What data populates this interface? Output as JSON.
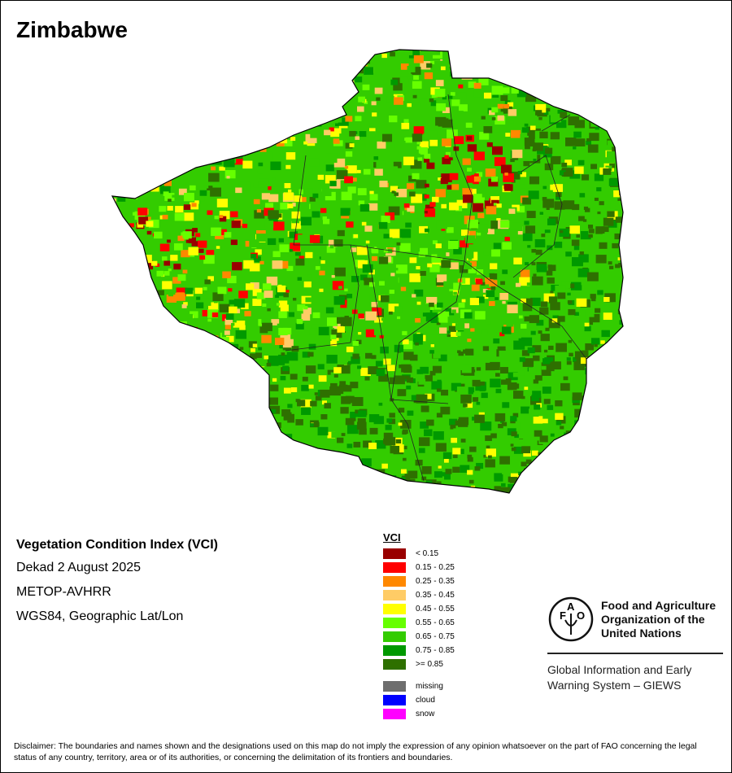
{
  "title": "Zimbabwe",
  "info": {
    "product": "Vegetation Condition Index (VCI)",
    "period": "Dekad 2 August 2025",
    "sensor": "METOP-AVHRR",
    "projection": "WGS84, Geographic Lat/Lon"
  },
  "legend": {
    "title": "VCI",
    "classes": [
      {
        "label": "< 0.15",
        "color": "#990000"
      },
      {
        "label": "0.15 - 0.25",
        "color": "#ff0000"
      },
      {
        "label": "0.25 - 0.35",
        "color": "#ff8800"
      },
      {
        "label": "0.35 - 0.45",
        "color": "#ffcc66"
      },
      {
        "label": "0.45 - 0.55",
        "color": "#ffff00"
      },
      {
        "label": "0.55 - 0.65",
        "color": "#66ff00"
      },
      {
        "label": "0.65 - 0.75",
        "color": "#33cc00"
      },
      {
        "label": "0.75 - 0.85",
        "color": "#009900"
      },
      {
        "label": ">= 0.85",
        "color": "#2e7000"
      }
    ],
    "other": [
      {
        "label": "missing",
        "color": "#6e6e6e"
      },
      {
        "label": "cloud",
        "color": "#0000ff"
      },
      {
        "label": "snow",
        "color": "#ff00ff"
      }
    ]
  },
  "logo": {
    "org_line1": "Food and Agriculture",
    "org_line2": "Organization of the",
    "org_line3": "United Nations",
    "giews_line1": "Global Information and Early",
    "giews_line2": "Warning System – GIEWS",
    "emblem_text": "FAO FIAT PANIS"
  },
  "disclaimer": "Disclaimer: The boundaries and names shown and the designations used on this map do not imply the expression of any opinion whatsoever on the part of FAO concerning the legal status of any country, territory, area or of its authorities, or concerning the delimitation of its frontiers and boundaries."
}
